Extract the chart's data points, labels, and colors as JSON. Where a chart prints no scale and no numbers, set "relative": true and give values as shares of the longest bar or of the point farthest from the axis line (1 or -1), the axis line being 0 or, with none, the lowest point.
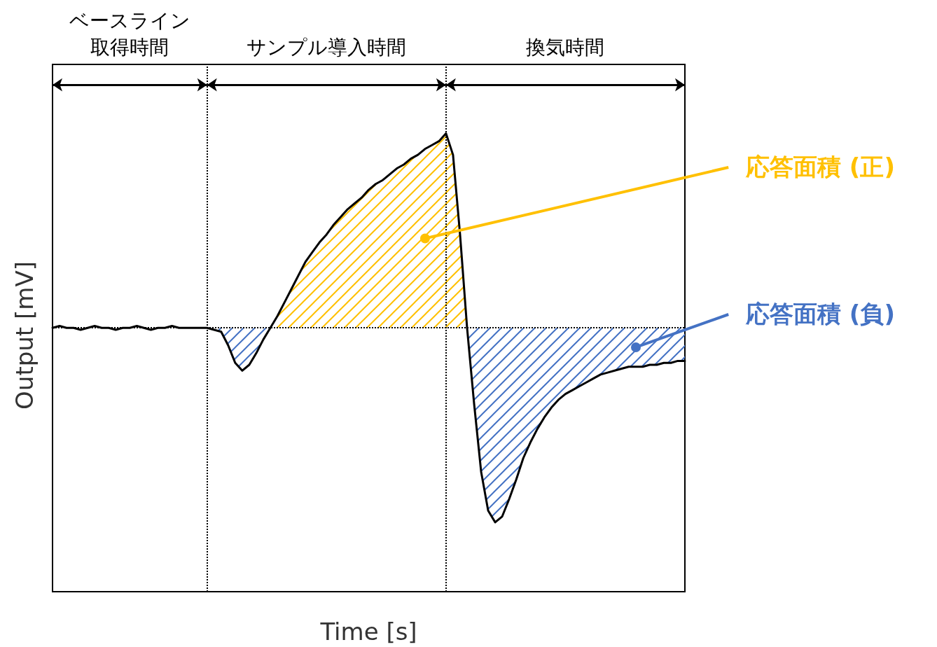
{
  "chart_data": {
    "type": "line",
    "relative": true,
    "xlabel": "Time [s]",
    "ylabel": "Output [mV]",
    "annotations": [
      "ベースライン取得時間",
      "サンプル導入時間",
      "換気時間"
    ],
    "categories": [
      null,
      null,
      null,
      null,
      null,
      null,
      null,
      null,
      null,
      null,
      null,
      null,
      null,
      null,
      null,
      null,
      null,
      null,
      null,
      null,
      null,
      null,
      null,
      null,
      null,
      null,
      null,
      null,
      null,
      null,
      null,
      null,
      null,
      null,
      null,
      null,
      null,
      null,
      null,
      null,
      null,
      null,
      null,
      null,
      null,
      null,
      null,
      null,
      null,
      null,
      null,
      null,
      null,
      null,
      null,
      null,
      null,
      null,
      null,
      null,
      null,
      null,
      null,
      null,
      null,
      null,
      null,
      null,
      null,
      null,
      null,
      null,
      null,
      null,
      null,
      null,
      null,
      null,
      null,
      null,
      null,
      null,
      null,
      null,
      null,
      null,
      null,
      null,
      null,
      null,
      null
    ],
    "series": [
      {
        "name": "応答面積 (正)",
        "type": "area",
        "color": "#ffc000",
        "values": [
          null,
          null,
          null,
          null,
          null,
          null,
          null,
          null,
          null,
          null,
          null,
          null,
          null,
          null,
          null,
          null,
          null,
          null,
          null,
          null,
          null,
          null,
          null,
          null,
          null,
          null,
          null,
          null,
          null,
          null,
          null,
          0,
          0.06,
          0.13,
          0.2,
          0.27,
          0.34,
          0.39,
          0.44,
          0.48,
          0.53,
          0.57,
          0.61,
          0.64,
          0.67,
          0.71,
          0.74,
          0.76,
          0.79,
          0.82,
          0.84,
          0.87,
          0.89,
          0.92,
          0.94,
          0.96,
          1,
          0.89,
          0.48,
          0,
          null,
          null,
          null,
          null,
          null,
          null,
          null,
          null,
          null,
          null,
          null,
          null,
          null,
          null,
          null,
          null,
          null,
          null,
          null,
          null,
          null,
          null,
          null,
          null,
          null,
          null,
          null,
          null,
          null,
          null,
          null
        ]
      },
      {
        "name": "応答面積 (負)",
        "type": "area",
        "color": "#4472c4",
        "values": [
          null,
          null,
          null,
          null,
          null,
          null,
          null,
          null,
          null,
          null,
          null,
          null,
          null,
          null,
          null,
          null,
          null,
          null,
          null,
          null,
          null,
          null,
          0,
          -0.01,
          -0.02,
          -0.09,
          -0.18,
          -0.22,
          -0.19,
          -0.13,
          -0.06,
          0,
          null,
          null,
          null,
          null,
          null,
          null,
          null,
          null,
          null,
          null,
          null,
          null,
          null,
          null,
          null,
          null,
          null,
          null,
          null,
          null,
          null,
          null,
          null,
          null,
          null,
          null,
          null,
          0,
          -0.39,
          -0.74,
          -0.94,
          -1,
          -0.97,
          -0.88,
          -0.78,
          -0.67,
          -0.59,
          -0.52,
          -0.46,
          -0.41,
          -0.37,
          -0.34,
          -0.32,
          -0.3,
          -0.28,
          -0.26,
          -0.24,
          -0.23,
          -0.22,
          -0.21,
          -0.2,
          -0.2,
          -0.2,
          -0.19,
          -0.19,
          -0.18,
          -0.18,
          -0.17,
          -0.17
        ]
      },
      {
        "color": "#000000",
        "values": [
          0,
          0.01,
          0,
          0,
          -0.01,
          0,
          0.01,
          0,
          0,
          -0.01,
          0,
          0,
          0.01,
          0,
          -0.01,
          0,
          0,
          0.01,
          0,
          0,
          0,
          0,
          0,
          -0.01,
          -0.02,
          -0.09,
          -0.18,
          -0.22,
          -0.19,
          -0.13,
          -0.06,
          0,
          0.06,
          0.13,
          0.2,
          0.27,
          0.34,
          0.39,
          0.44,
          0.48,
          0.53,
          0.57,
          0.61,
          0.64,
          0.67,
          0.71,
          0.74,
          0.76,
          0.79,
          0.82,
          0.84,
          0.87,
          0.89,
          0.92,
          0.94,
          0.96,
          1,
          0.89,
          0.48,
          0,
          -0.39,
          -0.74,
          -0.94,
          -1,
          -0.97,
          -0.88,
          -0.78,
          -0.67,
          -0.59,
          -0.52,
          -0.46,
          -0.41,
          -0.37,
          -0.34,
          -0.32,
          -0.3,
          -0.28,
          -0.26,
          -0.24,
          -0.23,
          -0.22,
          -0.21,
          -0.2,
          -0.2,
          -0.2,
          -0.19,
          -0.19,
          -0.18,
          -0.18,
          -0.17,
          -0.17
        ]
      }
    ],
    "ref_lines": [
      {
        "axis": "y",
        "value": 0,
        "line_style": "dotted"
      }
    ]
  }
}
